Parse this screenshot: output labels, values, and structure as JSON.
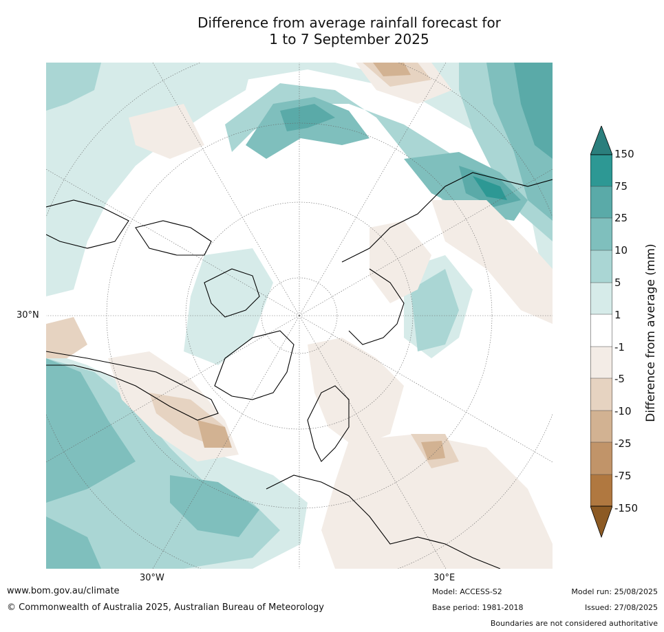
{
  "title": {
    "line1": "Difference from average rainfall forecast for",
    "line2": "1 to 7 September 2025"
  },
  "map": {
    "projection": "north-polar-stereographic",
    "lat_label": "30°N",
    "lon_labels": {
      "west": "30°W",
      "east": "30°E"
    }
  },
  "colorbar": {
    "label": "Difference from average (mm)",
    "ticks": [
      "150",
      "75",
      "25",
      "10",
      "5",
      "1",
      "-1",
      "-5",
      "-10",
      "-25",
      "-75",
      "-150"
    ],
    "colors": {
      "above_150": "#2b7f7d",
      "75_150": "#2d9894",
      "25_75": "#5aaaa8",
      "10_25": "#7fbfbd",
      "5_10": "#aad6d4",
      "1_5": "#d6ebe9",
      "neutral": "#ffffff",
      "m5_m1": "#f3ece6",
      "m10_m5": "#e6d3c1",
      "m25_m10": "#d2b292",
      "m75_m25": "#c19469",
      "m150_m75": "#b07840",
      "below_m150": "#8c5a24"
    }
  },
  "footer": {
    "website": "www.bom.gov.au/climate",
    "copyright": "© Commonwealth of Australia 2025, Australian Bureau of Meteorology",
    "model": "Model: ACCESS-S2",
    "base_period": "Base period: 1981-2018",
    "model_run": "Model run: 25/08/2025",
    "issued": "Issued: 27/08/2025",
    "disclaimer": "Boundaries are not considered authoritative"
  }
}
